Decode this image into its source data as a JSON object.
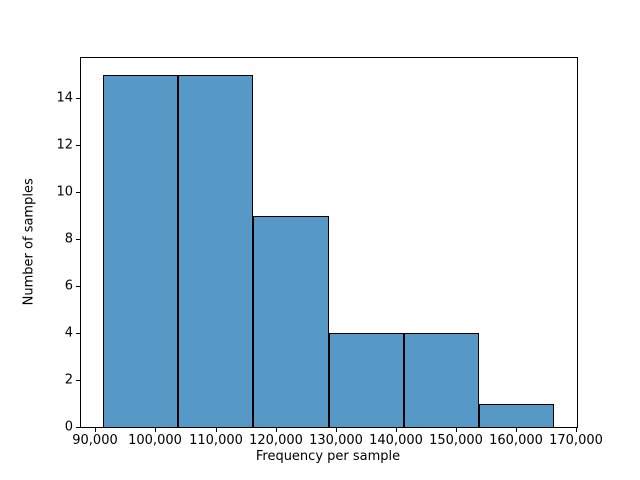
{
  "figure": {
    "background": "#ffffff"
  },
  "chart_data": {
    "type": "bar",
    "subtype": "histogram",
    "title": "",
    "xlabel": "Frequency per sample",
    "ylabel": "Number of samples",
    "bin_edges": [
      91220,
      103740,
      116260,
      128780,
      141300,
      153820,
      166340
    ],
    "values": [
      15,
      15,
      9,
      4,
      4,
      1
    ],
    "total_samples": 48,
    "xlim": [
      87460,
      170090
    ],
    "ylim": [
      0,
      15.75
    ],
    "x_ticks": [
      {
        "value": 90000,
        "label": "90,000"
      },
      {
        "value": 100000,
        "label": "100,000"
      },
      {
        "value": 110000,
        "label": "110,000"
      },
      {
        "value": 120000,
        "label": "120,000"
      },
      {
        "value": 130000,
        "label": "130,000"
      },
      {
        "value": 140000,
        "label": "140,000"
      },
      {
        "value": 150000,
        "label": "150,000"
      },
      {
        "value": 160000,
        "label": "160,000"
      },
      {
        "value": 170000,
        "label": "170,000"
      }
    ],
    "y_ticks": [
      {
        "value": 0,
        "label": "0"
      },
      {
        "value": 2,
        "label": "2"
      },
      {
        "value": 4,
        "label": "4"
      },
      {
        "value": 6,
        "label": "6"
      },
      {
        "value": 8,
        "label": "8"
      },
      {
        "value": 10,
        "label": "10"
      },
      {
        "value": 12,
        "label": "12"
      },
      {
        "value": 14,
        "label": "14"
      }
    ],
    "grid": false,
    "legend_position": "none",
    "colors": {
      "bar_fill": "#5799c6",
      "bar_edge": "#000000",
      "spine": "#000000",
      "text": "#000000"
    }
  }
}
